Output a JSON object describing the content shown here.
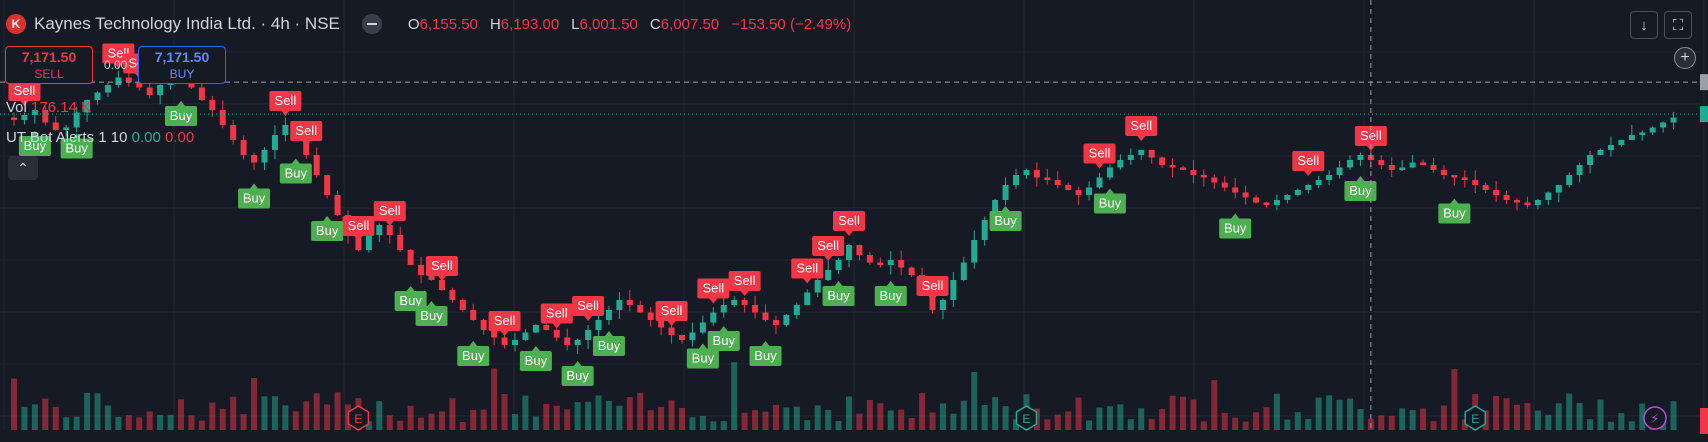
{
  "header": {
    "logo_letter": "K",
    "title": "Kaynes Technology India Ltd. · 4h · NSE",
    "ohlc": {
      "o_label": "O",
      "o_value": "6,155.50",
      "h_label": "H",
      "h_value": "6,193.00",
      "l_label": "L",
      "l_value": "6,001.50",
      "c_label": "C",
      "c_value": "6,007.50",
      "change": "−153.50 (−2.49%)"
    }
  },
  "trade": {
    "sell_price": "7,171.50",
    "sell_label": "SELL",
    "buy_price": "7,171.50",
    "buy_label": "BUY",
    "spread": "0.00"
  },
  "indicators": {
    "vol_label": "Vol",
    "vol_value": "176.14 K",
    "ut_label": "UT Bot Alerts 1 10",
    "ut_value_1": "0.00",
    "ut_value_2": "0.00"
  },
  "controls": {
    "collapse_icon": "chevron-up-icon",
    "download_icon": "arrow-down-icon",
    "fullscreen_icon": "fullscreen-icon",
    "add_icon": "plus-icon"
  },
  "colors": {
    "background": "#161a25",
    "up": "#22ab94",
    "down": "#f23645",
    "buy_signal": "#4caf50",
    "sell_signal": "#f23645",
    "grid": "#22262f"
  },
  "chart_data": {
    "type": "candlestick",
    "symbol": "Kaynes Technology India Ltd.",
    "timeframe": "4h",
    "exchange": "NSE",
    "close_series": [
      7020,
      7040,
      7060,
      7010,
      6980,
      6990,
      7050,
      7100,
      7130,
      7160,
      7190,
      7171,
      7150,
      7120,
      7160,
      7200,
      7180,
      7150,
      7100,
      7060,
      7000,
      6940,
      6880,
      6850,
      6900,
      6960,
      7000,
      6950,
      6880,
      6800,
      6720,
      6640,
      6560,
      6500,
      6560,
      6600,
      6560,
      6500,
      6440,
      6400,
      6380,
      6340,
      6300,
      6260,
      6220,
      6180,
      6150,
      6120,
      6140,
      6170,
      6200,
      6180,
      6150,
      6120,
      6140,
      6180,
      6220,
      6260,
      6300,
      6280,
      6250,
      6220,
      6190,
      6160,
      6140,
      6170,
      6210,
      6250,
      6280,
      6300,
      6280,
      6250,
      6220,
      6200,
      6240,
      6280,
      6330,
      6380,
      6420,
      6460,
      6520,
      6480,
      6450,
      6440,
      6460,
      6430,
      6400,
      6380,
      6260,
      6300,
      6380,
      6450,
      6540,
      6620,
      6700,
      6760,
      6800,
      6820,
      6790,
      6780,
      6760,
      6740,
      6720,
      6750,
      6790,
      6830,
      6860,
      6880,
      6900,
      6870,
      6840,
      6830,
      6820,
      6800,
      6790,
      6770,
      6750,
      6730,
      6710,
      6690,
      6680,
      6700,
      6720,
      6740,
      6760,
      6780,
      6800,
      6830,
      6860,
      6880,
      6860,
      6840,
      6820,
      6830,
      6850,
      6840,
      6820,
      6800,
      6790,
      6780,
      6760,
      6740,
      6720,
      6700,
      6690,
      6680,
      6700,
      6730,
      6760,
      6800,
      6840,
      6880,
      6900,
      6920,
      6940,
      6960,
      6970,
      6990,
      7010,
      7030
    ],
    "signals": [
      {
        "type": "Sell",
        "index": 1
      },
      {
        "type": "Buy",
        "index": 2
      },
      {
        "type": "Buy",
        "index": 6
      },
      {
        "type": "Sell",
        "index": 10
      },
      {
        "type": "Sell",
        "index": 12
      },
      {
        "type": "Buy",
        "index": 16
      },
      {
        "type": "Sell",
        "index": 26
      },
      {
        "type": "Buy",
        "index": 23
      },
      {
        "type": "Sell",
        "index": 28
      },
      {
        "type": "Buy",
        "index": 27
      },
      {
        "type": "Sell",
        "index": 33
      },
      {
        "type": "Buy",
        "index": 30
      },
      {
        "type": "Sell",
        "index": 36
      },
      {
        "type": "Buy",
        "index": 38
      },
      {
        "type": "Sell",
        "index": 41
      },
      {
        "type": "Buy",
        "index": 40
      },
      {
        "type": "Sell",
        "index": 47
      },
      {
        "type": "Buy",
        "index": 44
      },
      {
        "type": "Sell",
        "index": 52
      },
      {
        "type": "Buy",
        "index": 50
      },
      {
        "type": "Sell",
        "index": 55
      },
      {
        "type": "Buy",
        "index": 54
      },
      {
        "type": "Sell",
        "index": 63
      },
      {
        "type": "Buy",
        "index": 57
      },
      {
        "type": "Sell",
        "index": 67
      },
      {
        "type": "Buy",
        "index": 66
      },
      {
        "type": "Sell",
        "index": 70
      },
      {
        "type": "Buy",
        "index": 68
      },
      {
        "type": "Sell",
        "index": 76
      },
      {
        "type": "Buy",
        "index": 72
      },
      {
        "type": "Sell",
        "index": 78
      },
      {
        "type": "Buy",
        "index": 79
      },
      {
        "type": "Sell",
        "index": 80
      },
      {
        "type": "Buy",
        "index": 84
      },
      {
        "type": "Sell",
        "index": 88
      },
      {
        "type": "Buy",
        "index": 95
      },
      {
        "type": "Sell",
        "index": 104
      },
      {
        "type": "Buy",
        "index": 105
      },
      {
        "type": "Sell",
        "index": 108
      },
      {
        "type": "Buy",
        "index": 117
      },
      {
        "type": "Sell",
        "index": 124
      },
      {
        "type": "Buy",
        "index": 129
      },
      {
        "type": "Sell",
        "index": 130
      },
      {
        "type": "Buy",
        "index": 138
      }
    ],
    "events": [
      {
        "type": "E",
        "index": 33,
        "color": "#f23645"
      },
      {
        "type": "E",
        "index": 97,
        "color": "#22ab94"
      },
      {
        "type": "E",
        "index": 140,
        "color": "#22ab94"
      }
    ],
    "last_price": 7171.5,
    "crosshair_index": 130,
    "grid": true
  }
}
